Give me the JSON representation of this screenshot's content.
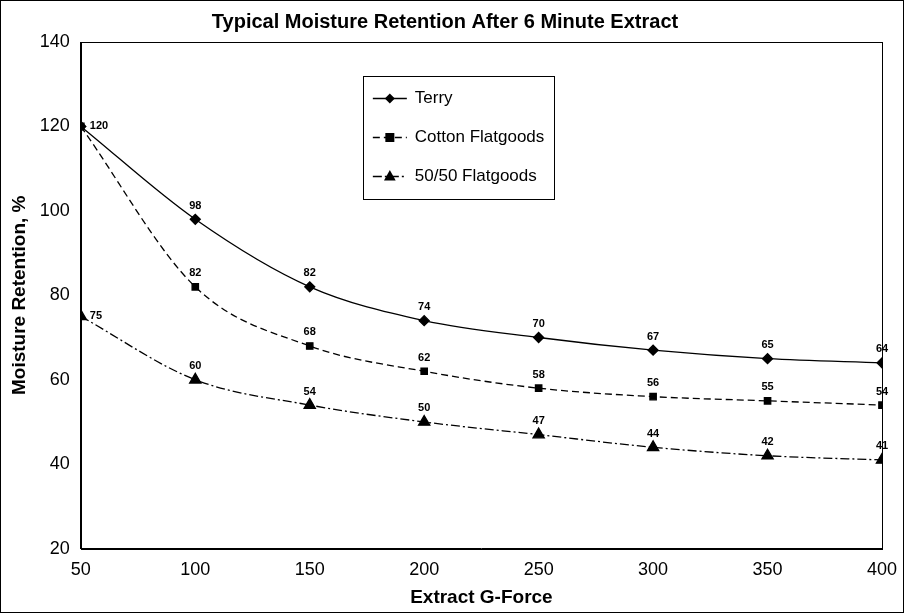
{
  "chart_data": {
    "type": "line",
    "title": "Typical Moisture Retention After 6 Minute Extract",
    "x_label": "Extract G-Force",
    "y_label": "Moisture Retention, %",
    "x": [
      50,
      100,
      150,
      200,
      250,
      300,
      350,
      400
    ],
    "series": [
      {
        "name": "Terry",
        "color": "#000000",
        "marker": "diamond",
        "line_style": "solid",
        "values": [
          120,
          98,
          82,
          74,
          70,
          67,
          65,
          64
        ]
      },
      {
        "name": "Cotton Flatgoods",
        "color": "#000000",
        "marker": "square",
        "line_style": "dashed",
        "values": [
          120,
          82,
          68,
          62,
          58,
          56,
          55,
          54
        ],
        "value_labels": [
          null,
          "82",
          "68",
          "62",
          "58",
          "56",
          "55",
          "54"
        ]
      },
      {
        "name": "50/50 Flatgoods",
        "color": "#000000",
        "marker": "triangle",
        "line_style": "dashdot",
        "values": [
          75,
          60,
          54,
          50,
          47,
          44,
          42,
          41
        ]
      }
    ],
    "xlim": [
      50,
      400
    ],
    "xticks": [
      50,
      100,
      150,
      200,
      250,
      300,
      350,
      400
    ],
    "ylim": [
      20,
      140
    ],
    "yticks": [
      20,
      40,
      60,
      80,
      100,
      120,
      140
    ],
    "grid": false,
    "legend": "top",
    "data_labels": true
  }
}
